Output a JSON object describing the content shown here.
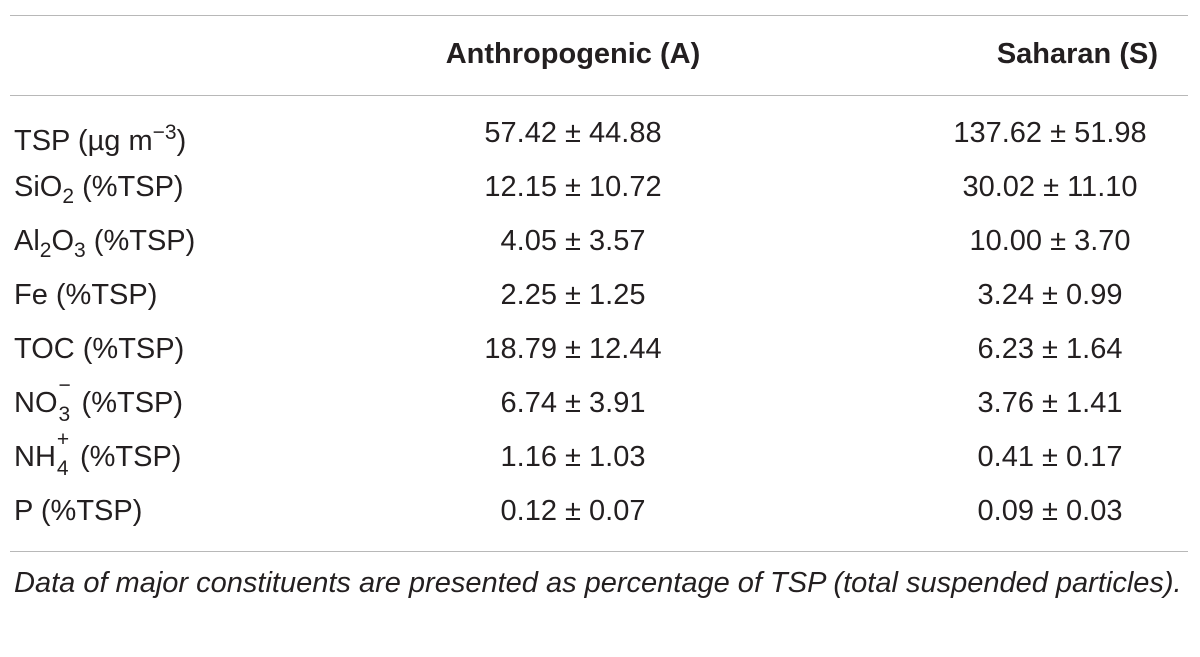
{
  "table": {
    "header": {
      "col_a": "Anthropogenic (A)",
      "col_s": "Saharan (S)"
    },
    "rows": [
      {
        "label_main": "TSP (µg m",
        "label_sup": "−3",
        "label_tail": ")",
        "a": "57.42 ± 44.88",
        "s": "137.62 ± 51.98"
      },
      {
        "label_main": "SiO",
        "label_sub": "2",
        "label_tail": " (%TSP)",
        "a": "12.15 ± 10.72",
        "s": "30.02 ± 11.10"
      },
      {
        "label_main": "Al",
        "label_sub1": "2",
        "label_mid": "O",
        "label_sub2": "3",
        "label_tail": " (%TSP)",
        "a": "4.05 ± 3.57",
        "s": "10.00 ± 3.70"
      },
      {
        "label": "Fe (%TSP)",
        "a": "2.25 ± 1.25",
        "s": "3.24 ± 0.99"
      },
      {
        "label": "TOC (%TSP)",
        "a": "18.79 ± 12.44",
        "s": "6.23 ± 1.64"
      },
      {
        "label_main": "NO",
        "label_sup": "−",
        "label_sub": "3",
        "label_tail": " (%TSP)",
        "a": "6.74 ± 3.91",
        "s": "3.76 ± 1.41"
      },
      {
        "label_main": "NH",
        "label_sup": "+",
        "label_sub": "4",
        "label_tail": " (%TSP)",
        "a": "1.16 ± 1.03",
        "s": "0.41 ± 0.17"
      },
      {
        "label": "P (%TSP)",
        "a": "0.12 ± 0.07",
        "s": "0.09 ± 0.03"
      }
    ],
    "footnote": "Data of major constituents are presented as percentage of TSP (total suspended particles)."
  }
}
